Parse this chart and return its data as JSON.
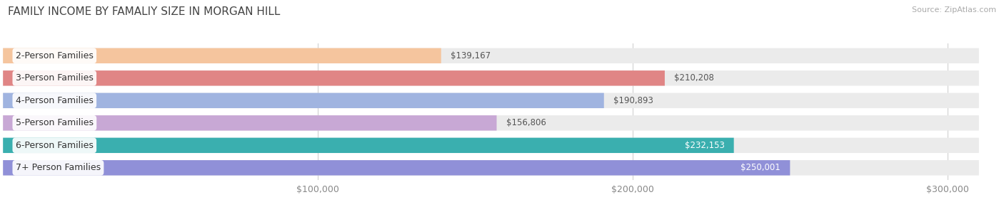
{
  "title": "FAMILY INCOME BY FAMALIY SIZE IN MORGAN HILL",
  "source": "Source: ZipAtlas.com",
  "categories": [
    "2-Person Families",
    "3-Person Families",
    "4-Person Families",
    "5-Person Families",
    "6-Person Families",
    "7+ Person Families"
  ],
  "values": [
    139167,
    210208,
    190893,
    156806,
    232153,
    250001
  ],
  "bar_colors": [
    "#f5c59e",
    "#e08585",
    "#a0b4e0",
    "#c8a8d5",
    "#3aafaf",
    "#9090d8"
  ],
  "label_colors": [
    "#555555",
    "#555555",
    "#555555",
    "#555555",
    "#ffffff",
    "#ffffff"
  ],
  "value_labels": [
    "$139,167",
    "$210,208",
    "$190,893",
    "$156,806",
    "$232,153",
    "$250,001"
  ],
  "xlim_data": [
    0,
    310000
  ],
  "xlim_display": [
    0,
    310000
  ],
  "xticks": [
    100000,
    200000,
    300000
  ],
  "xtick_labels": [
    "$100,000",
    "$200,000",
    "$300,000"
  ],
  "bg_color": "#ffffff",
  "bar_bg_color": "#ebebeb",
  "bar_height": 0.68,
  "title_fontsize": 11,
  "label_fontsize": 9,
  "value_fontsize": 8.5,
  "tick_fontsize": 9,
  "grid_color": "#d0d0d0"
}
